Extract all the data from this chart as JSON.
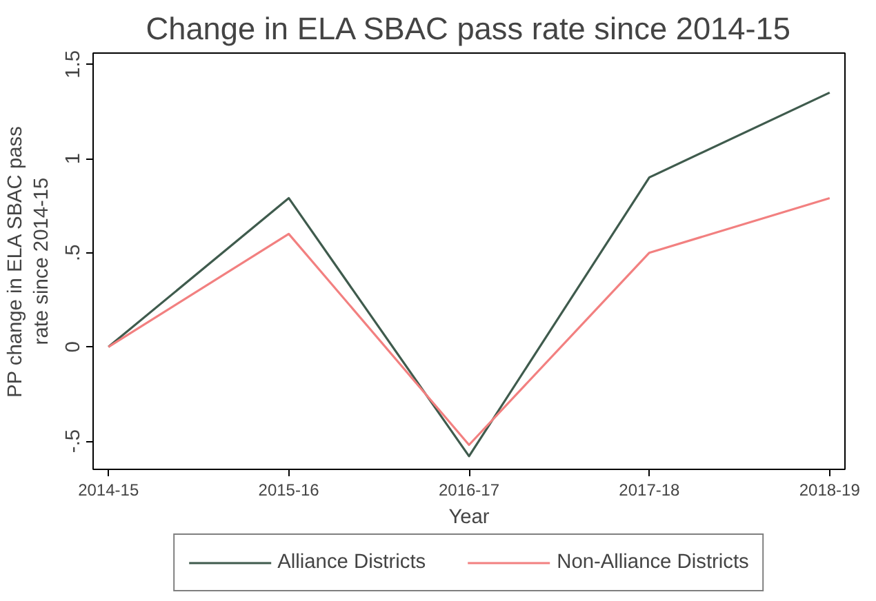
{
  "chart_data": {
    "type": "line",
    "title": "Change in ELA SBAC pass rate since 2014-15",
    "xlabel": "Year",
    "ylabel": "PP change in ELA SBAC pass\nrate since 2014-15",
    "categories": [
      "2014-15",
      "2015-16",
      "2016-17",
      "2017-18",
      "2018-19"
    ],
    "series": [
      {
        "name": "Alliance Districts",
        "color": "#3f5b4d",
        "values": [
          0,
          0.79,
          -0.58,
          0.9,
          1.35
        ]
      },
      {
        "name": "Non-Alliance Districts",
        "color": "#f28080",
        "values": [
          0,
          0.6,
          -0.52,
          0.5,
          0.79
        ]
      }
    ],
    "ylim": [
      -0.65,
      1.56
    ],
    "yticks": [
      {
        "value": -0.5,
        "label": "-.5"
      },
      0,
      {
        "value": 0.5,
        "label": ".5"
      },
      1,
      1.5
    ],
    "grid": false,
    "legend": "bottom",
    "marker": "none",
    "line_style": "solid"
  }
}
